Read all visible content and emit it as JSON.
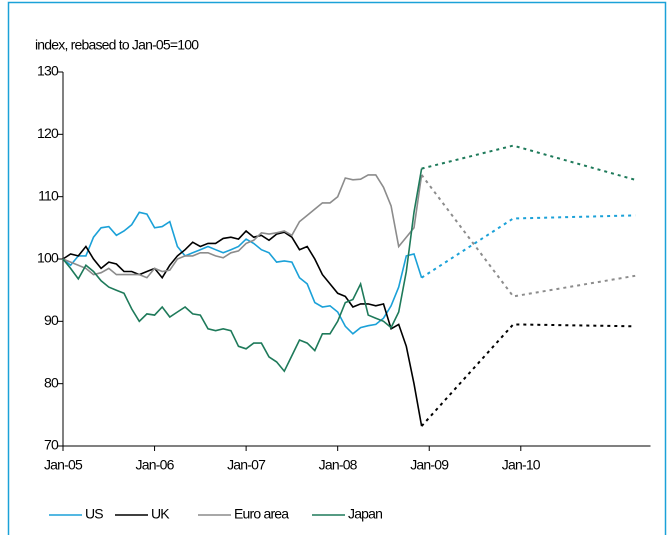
{
  "chart_data": {
    "type": "line",
    "y_axis_label": "index, rebased to Jan-05=100",
    "xlim": [
      0,
      77
    ],
    "ylim": [
      70,
      130
    ],
    "xticks": [
      {
        "value": 0,
        "label": "Jan-05"
      },
      {
        "value": 12,
        "label": "Jan-06"
      },
      {
        "value": 24,
        "label": "Jan-07"
      },
      {
        "value": 36,
        "label": "Jan-08"
      },
      {
        "value": 48,
        "label": "Jan-09"
      },
      {
        "value": 60,
        "label": "Jan-10"
      }
    ],
    "yticks": [
      70,
      80,
      90,
      100,
      110,
      120,
      130
    ],
    "x": [
      0,
      1,
      2,
      3,
      4,
      5,
      6,
      7,
      8,
      9,
      10,
      11,
      12,
      13,
      14,
      15,
      16,
      17,
      18,
      19,
      20,
      21,
      22,
      23,
      24,
      25,
      26,
      27,
      28,
      29,
      30,
      31,
      32,
      33,
      34,
      35,
      36,
      37,
      38,
      39,
      40,
      41,
      42,
      43,
      44,
      45,
      46,
      47
    ],
    "forecast_x": [
      47,
      59,
      75
    ],
    "series": [
      {
        "name": "US",
        "color": "#1ba1d8",
        "values": [
          100,
          99,
          100.5,
          100.5,
          103.5,
          105,
          105.2,
          103.8,
          104.5,
          105.5,
          107.5,
          107.2,
          105,
          105.2,
          106,
          102,
          100.5,
          101,
          101.5,
          102,
          101.5,
          101,
          101.5,
          102,
          103.2,
          102.5,
          101.5,
          101,
          99.5,
          99.7,
          99.5,
          97,
          96,
          93,
          92.3,
          92.5,
          91.5,
          89.2,
          88,
          89,
          89.3,
          89.5,
          90.5,
          92.5,
          95.5,
          100.5,
          100.8,
          97
        ],
        "forecast_values": [
          97,
          106.5,
          107
        ]
      },
      {
        "name": "UK",
        "color": "#000000",
        "values": [
          100,
          100.8,
          100.5,
          102,
          100,
          98.5,
          99.5,
          99.2,
          98,
          98,
          97.5,
          98,
          98.5,
          97,
          99,
          100.5,
          101.5,
          102.7,
          102,
          102.5,
          102.5,
          103.3,
          103.5,
          103.2,
          104.5,
          103.5,
          103.8,
          103,
          104,
          104.3,
          103.5,
          101.5,
          102,
          100,
          97.5,
          96,
          94.5,
          94,
          92.3,
          92.8,
          92.8,
          92.5,
          92.8,
          88.8,
          89.5,
          86,
          80,
          73.2
        ],
        "forecast_values": [
          73.2,
          89.5,
          89.2
        ]
      },
      {
        "name": "Euro area",
        "color": "#8c8c8c",
        "values": [
          100,
          99.5,
          99,
          98.5,
          97.5,
          97.8,
          98.5,
          97.5,
          97.5,
          97.5,
          97.5,
          97,
          98.5,
          98,
          98.2,
          100,
          100.5,
          100.5,
          101,
          101,
          100.5,
          100.2,
          101,
          101.3,
          102.5,
          103,
          104.2,
          104,
          104.2,
          104.5,
          103.8,
          106,
          107,
          108,
          109,
          109,
          110,
          113,
          112.7,
          112.8,
          113.5,
          113.5,
          111.5,
          108.5,
          102,
          103.5,
          105,
          113.5
        ],
        "forecast_values": [
          113.5,
          94,
          97.3
        ]
      },
      {
        "name": "Japan",
        "color": "#1e7a5a",
        "values": [
          100,
          98.5,
          96.8,
          99,
          98,
          96.5,
          95.5,
          95,
          94.5,
          92,
          90,
          91.2,
          91,
          92.3,
          90.7,
          91.5,
          92.3,
          91.2,
          91,
          88.8,
          88.5,
          88.8,
          88.5,
          86,
          85.6,
          86.5,
          86.5,
          84.3,
          83.5,
          82,
          84.5,
          87,
          86.5,
          85.3,
          88,
          88,
          90,
          93,
          93.5,
          96,
          91,
          90.5,
          90,
          89,
          91.5,
          98,
          107.5,
          114.5
        ],
        "forecast_values": [
          114.5,
          118.2,
          112.7
        ]
      }
    ]
  }
}
